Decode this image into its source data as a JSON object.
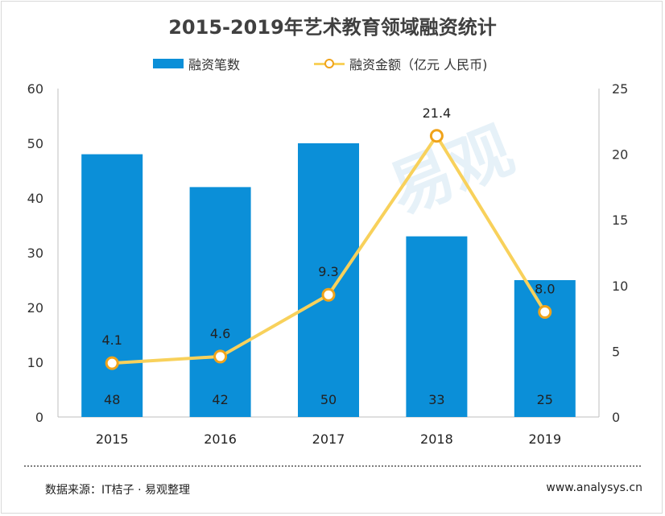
{
  "title": "2015-2019年艺术教育领域融资统计",
  "legend": {
    "bar_label": "融资笔数",
    "line_label": "融资金额（亿元 人民币)"
  },
  "footer": {
    "source": "数据来源：IT桔子 · 易观整理",
    "site": "www.analysys.cn"
  },
  "colors": {
    "bar": "#0b8fd8",
    "line": "#f8d15b",
    "marker": "#f0a31a",
    "axis": "#bfbfbf"
  },
  "chart_data": {
    "type": "bar",
    "title": "2015-2019年艺术教育领域融资统计",
    "categories": [
      "2015",
      "2016",
      "2017",
      "2018",
      "2019"
    ],
    "series": [
      {
        "name": "融资笔数",
        "type": "bar",
        "axis": "left",
        "values": [
          48,
          42,
          50,
          33,
          25
        ],
        "labels": [
          "48",
          "42",
          "50",
          "33",
          "25"
        ]
      },
      {
        "name": "融资金额（亿元 人民币)",
        "type": "line",
        "axis": "right",
        "values": [
          4.1,
          4.6,
          9.3,
          21.4,
          8.0
        ],
        "labels": [
          "4.1",
          "4.6",
          "9.3",
          "21.4",
          "8.0"
        ]
      }
    ],
    "y_left": {
      "min": 0,
      "max": 60,
      "ticks": [
        0,
        10,
        20,
        30,
        40,
        50,
        60
      ]
    },
    "y_right": {
      "min": 0,
      "max": 25,
      "ticks": [
        0,
        5,
        10,
        15,
        20,
        25
      ]
    },
    "grid": false,
    "legend_position": "top"
  }
}
